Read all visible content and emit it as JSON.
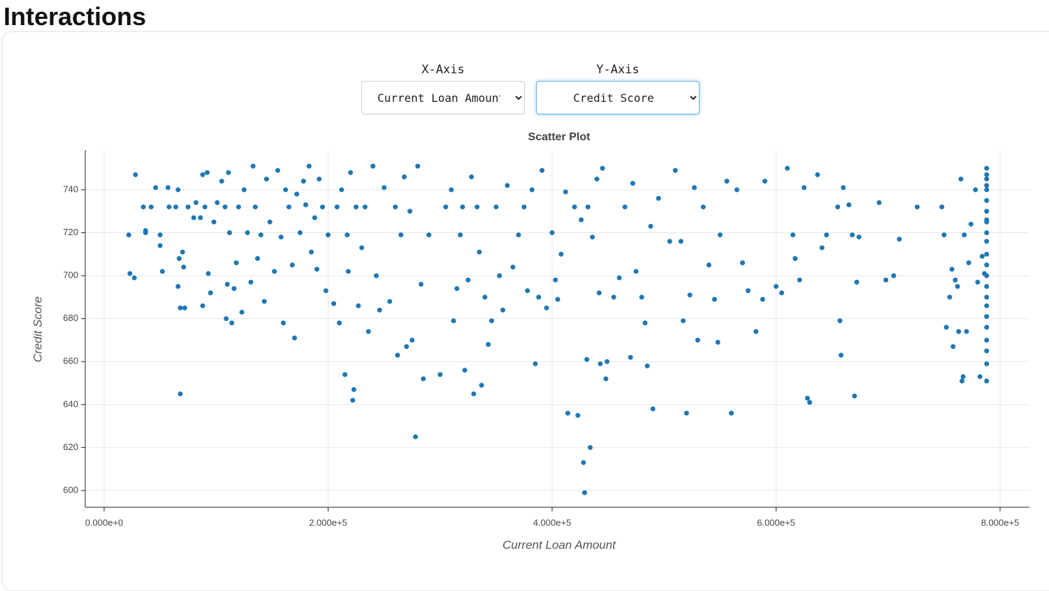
{
  "page_title": "Interactions",
  "controls": {
    "x_label": "X-Axis",
    "x_options": [
      "Current Loan Amount"
    ],
    "y_label": "Y-Axis",
    "y_options": [
      "Credit Score"
    ]
  },
  "chart_data": {
    "type": "scatter",
    "title": "Scatter Plot",
    "x_label": "Current Loan Amount",
    "y_label": "Credit Score",
    "color": "#1f77b4",
    "grid": true,
    "xlim": [
      -16850,
      826200
    ],
    "ylim": [
      592.2,
      758.5
    ],
    "xticks": [
      {
        "value": 0,
        "label": "0.000e+0"
      },
      {
        "value": 200000,
        "label": "2.000e+5"
      },
      {
        "value": 400000,
        "label": "4.000e+5"
      },
      {
        "value": 600000,
        "label": "6.000e+5"
      },
      {
        "value": 800000,
        "label": "8.000e+5"
      }
    ],
    "yticks": [
      600,
      620,
      640,
      660,
      680,
      700,
      720,
      740
    ],
    "x": [
      22000,
      23000,
      27000,
      28000,
      35000,
      37000,
      37000,
      42000,
      46000,
      50000,
      50000,
      52000,
      57000,
      58000,
      64000,
      66000,
      66000,
      67000,
      68000,
      68000,
      70000,
      71000,
      72000,
      75000,
      80000,
      82000,
      86000,
      88000,
      88000,
      90000,
      92000,
      93000,
      95000,
      98000,
      101000,
      105000,
      108000,
      109000,
      110000,
      111000,
      112000,
      114000,
      116000,
      118000,
      120000,
      123000,
      125000,
      128000,
      131000,
      133000,
      135000,
      137000,
      140000,
      143000,
      145000,
      148000,
      152000,
      155000,
      158000,
      160000,
      162000,
      165000,
      168000,
      170000,
      172000,
      175000,
      178000,
      180000,
      183000,
      185000,
      188000,
      190000,
      192000,
      195000,
      198000,
      200000,
      205000,
      208000,
      210000,
      212000,
      215000,
      217000,
      218000,
      220000,
      222000,
      223000,
      225000,
      227000,
      230000,
      233000,
      236000,
      240000,
      243000,
      246000,
      250000,
      255000,
      260000,
      262000,
      265000,
      268000,
      270000,
      273000,
      275000,
      278000,
      280000,
      283000,
      285000,
      290000,
      300000,
      305000,
      310000,
      312000,
      315000,
      318000,
      320000,
      322000,
      325000,
      328000,
      330000,
      333000,
      335000,
      337000,
      340000,
      343000,
      346000,
      350000,
      353000,
      356000,
      360000,
      365000,
      370000,
      375000,
      378000,
      382000,
      385000,
      388000,
      391000,
      395000,
      400000,
      403000,
      405000,
      408000,
      412000,
      414000,
      420000,
      423000,
      426000,
      428000,
      429000,
      431000,
      432000,
      434000,
      436000,
      440000,
      442000,
      443000,
      445000,
      448000,
      449000,
      455000,
      460000,
      465000,
      470000,
      472000,
      475000,
      480000,
      483000,
      485000,
      488000,
      490000,
      495000,
      505000,
      510000,
      515000,
      517000,
      520000,
      523000,
      527000,
      530000,
      535000,
      540000,
      545000,
      548000,
      550000,
      556000,
      560000,
      565000,
      570000,
      575000,
      582000,
      588000,
      590000,
      600000,
      605000,
      610000,
      615000,
      617000,
      621000,
      625000,
      628000,
      630000,
      637000,
      641000,
      645000,
      655000,
      657000,
      658000,
      660000,
      665000,
      668000,
      670000,
      672000,
      674000,
      692000,
      698000,
      705000,
      710000,
      726000,
      748000,
      750000,
      752000,
      755000,
      757000,
      758000,
      760000,
      762000,
      763000,
      765000,
      766000,
      767000,
      768000,
      770000,
      772000,
      774000,
      778000,
      780000,
      782000,
      784000,
      786000,
      788000,
      788000,
      788000,
      788000,
      788000,
      788000,
      788000,
      788000,
      788000,
      788000,
      788000,
      788000,
      788000,
      788000,
      788000,
      788000,
      788000,
      788000,
      788000,
      788000,
      788000,
      788000,
      788000
    ],
    "values": [
      719,
      701,
      699,
      747,
      732,
      721,
      720,
      732,
      741,
      719,
      714,
      702,
      741,
      732,
      732,
      695,
      740,
      708,
      685,
      645,
      711,
      704,
      685,
      732,
      727,
      734,
      727,
      686,
      747,
      732,
      748,
      701,
      692,
      725,
      734,
      744,
      732,
      680,
      696,
      748,
      720,
      678,
      694,
      706,
      732,
      683,
      740,
      720,
      697,
      751,
      732,
      708,
      719,
      688,
      745,
      725,
      702,
      749,
      718,
      678,
      740,
      732,
      705,
      671,
      738,
      720,
      744,
      733,
      751,
      711,
      727,
      703,
      745,
      732,
      693,
      719,
      687,
      732,
      678,
      740,
      654,
      719,
      702,
      748,
      642,
      647,
      732,
      686,
      713,
      732,
      674,
      751,
      700,
      684,
      741,
      688,
      732,
      663,
      719,
      746,
      667,
      730,
      670,
      625,
      751,
      696,
      652,
      719,
      654,
      732,
      740,
      679,
      694,
      719,
      732,
      656,
      698,
      746,
      645,
      732,
      711,
      649,
      690,
      668,
      679,
      732,
      700,
      684,
      742,
      704,
      719,
      732,
      693,
      740,
      659,
      690,
      749,
      685,
      720,
      698,
      689,
      710,
      739,
      636,
      732,
      635,
      726,
      613,
      599,
      661,
      732,
      620,
      718,
      745,
      692,
      659,
      750,
      652,
      660,
      690,
      699,
      732,
      662,
      743,
      702,
      690,
      678,
      658,
      723,
      638,
      736,
      716,
      749,
      716,
      679,
      636,
      691,
      741,
      670,
      732,
      705,
      689,
      669,
      719,
      744,
      636,
      740,
      706,
      693,
      674,
      689,
      744,
      695,
      692,
      750,
      719,
      708,
      698,
      741,
      643,
      641,
      747,
      713,
      719,
      732,
      679,
      663,
      741,
      733,
      719,
      644,
      697,
      718,
      734,
      698,
      700,
      717,
      732,
      732,
      719,
      676,
      690,
      703,
      667,
      698,
      695,
      674,
      745,
      651,
      653,
      719,
      674,
      706,
      724,
      740,
      697,
      653,
      709,
      701,
      750,
      745,
      740,
      735,
      730,
      725,
      720,
      716,
      710,
      705,
      700,
      695,
      690,
      686,
      681,
      676,
      670,
      665,
      659,
      651,
      726,
      742,
      747
    ]
  }
}
